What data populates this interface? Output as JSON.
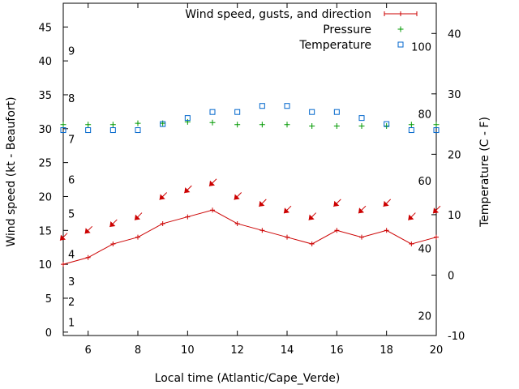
{
  "chart_data": {
    "type": "line",
    "x_label": "Local time (Atlantic/Cape_Verde)",
    "y_label": "Wind speed (kt - Beaufort)",
    "y2_label": "Temperature (C - F)",
    "x_ticks": [
      6,
      8,
      10,
      12,
      14,
      16,
      18,
      20
    ],
    "xlim": [
      5,
      20
    ],
    "y_ticks": [
      0,
      5,
      10,
      15,
      20,
      25,
      30,
      35,
      40,
      45
    ],
    "ylim": [
      -0.5,
      48.5
    ],
    "y2_ticks": [
      -10,
      0,
      10,
      20,
      30,
      40
    ],
    "y2lim": [
      -10,
      45
    ],
    "beaufort_labels": [
      {
        "text": "1",
        "wind": 1.5
      },
      {
        "text": "2",
        "wind": 4.5
      },
      {
        "text": "3",
        "wind": 7.5
      },
      {
        "text": "4",
        "wind": 11.5
      },
      {
        "text": "5",
        "wind": 17.5
      },
      {
        "text": "6",
        "wind": 22.5
      },
      {
        "text": "7",
        "wind": 28.5
      },
      {
        "text": "8",
        "wind": 34.5
      },
      {
        "text": "9",
        "wind": 41.5
      }
    ],
    "fahrenheit_labels": [
      {
        "text": "20",
        "celsius": -6.7
      },
      {
        "text": "40",
        "celsius": 4.4
      },
      {
        "text": "60",
        "celsius": 15.6
      },
      {
        "text": "80",
        "celsius": 26.7
      },
      {
        "text": "100",
        "celsius": 37.8
      }
    ],
    "legend": [
      {
        "label": "Wind speed, gusts, and direction",
        "color": "#cc0000"
      },
      {
        "label": "Pressure",
        "color": "#009900"
      },
      {
        "label": "Temperature",
        "color": "#0066cc"
      }
    ],
    "series": [
      {
        "name": "Wind speed, gusts, and direction",
        "color": "#cc0000",
        "x": [
          5,
          6,
          7,
          8,
          9,
          10,
          11,
          12,
          13,
          14,
          15,
          16,
          17,
          18,
          19,
          20
        ],
        "values": [
          10,
          11,
          13,
          14,
          16,
          17,
          18,
          16,
          15,
          14,
          13,
          15,
          14,
          15,
          13,
          14
        ],
        "gusts": [
          14,
          15,
          16,
          17,
          20,
          21,
          22,
          20,
          19,
          18,
          17,
          19,
          18,
          19,
          17,
          18
        ]
      },
      {
        "name": "Pressure",
        "color": "#009900",
        "x": [
          5,
          6,
          7,
          8,
          9,
          10,
          11,
          12,
          13,
          14,
          15,
          16,
          17,
          18,
          19,
          20
        ],
        "values": [
          30.6,
          30.6,
          30.6,
          30.8,
          30.8,
          31.0,
          30.9,
          30.6,
          30.6,
          30.6,
          30.4,
          30.4,
          30.4,
          30.4,
          30.6,
          30.6
        ]
      },
      {
        "name": "Temperature",
        "color": "#0066cc",
        "x": [
          5,
          6,
          7,
          8,
          9,
          10,
          11,
          12,
          13,
          14,
          15,
          16,
          17,
          18,
          19,
          20
        ],
        "values": [
          24,
          24,
          24,
          24,
          25,
          26,
          27,
          27,
          28,
          28,
          27,
          27,
          26,
          25,
          24,
          24
        ]
      }
    ]
  }
}
